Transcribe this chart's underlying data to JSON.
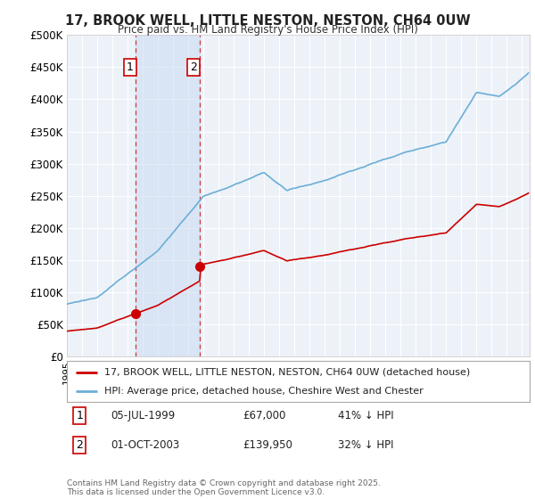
{
  "title": "17, BROOK WELL, LITTLE NESTON, NESTON, CH64 0UW",
  "subtitle": "Price paid vs. HM Land Registry's House Price Index (HPI)",
  "ylabel_ticks": [
    "£0",
    "£50K",
    "£100K",
    "£150K",
    "£200K",
    "£250K",
    "£300K",
    "£350K",
    "£400K",
    "£450K",
    "£500K"
  ],
  "ytick_vals": [
    0,
    50000,
    100000,
    150000,
    200000,
    250000,
    300000,
    350000,
    400000,
    450000,
    500000
  ],
  "ylim": [
    0,
    500000
  ],
  "legend_line1": "17, BROOK WELL, LITTLE NESTON, NESTON, CH64 0UW (detached house)",
  "legend_line2": "HPI: Average price, detached house, Cheshire West and Chester",
  "annotation1_date": "05-JUL-1999",
  "annotation1_price": "£67,000",
  "annotation1_hpi": "41% ↓ HPI",
  "annotation2_date": "01-OCT-2003",
  "annotation2_price": "£139,950",
  "annotation2_hpi": "32% ↓ HPI",
  "footer": "Contains HM Land Registry data © Crown copyright and database right 2025.\nThis data is licensed under the Open Government Licence v3.0.",
  "hpi_color": "#6baed6",
  "price_color": "#cc0000",
  "annotation_color": "#cc0000",
  "background_color": "#ffffff",
  "plot_bg_color": "#edf2f9",
  "marker1_x": 1999.54,
  "marker1_y": 67000,
  "marker2_x": 2003.75,
  "marker2_y": 139950,
  "vline1_x": 1999.54,
  "vline2_x": 2003.75,
  "xlim_left": 1995.0,
  "xlim_right": 2025.5
}
